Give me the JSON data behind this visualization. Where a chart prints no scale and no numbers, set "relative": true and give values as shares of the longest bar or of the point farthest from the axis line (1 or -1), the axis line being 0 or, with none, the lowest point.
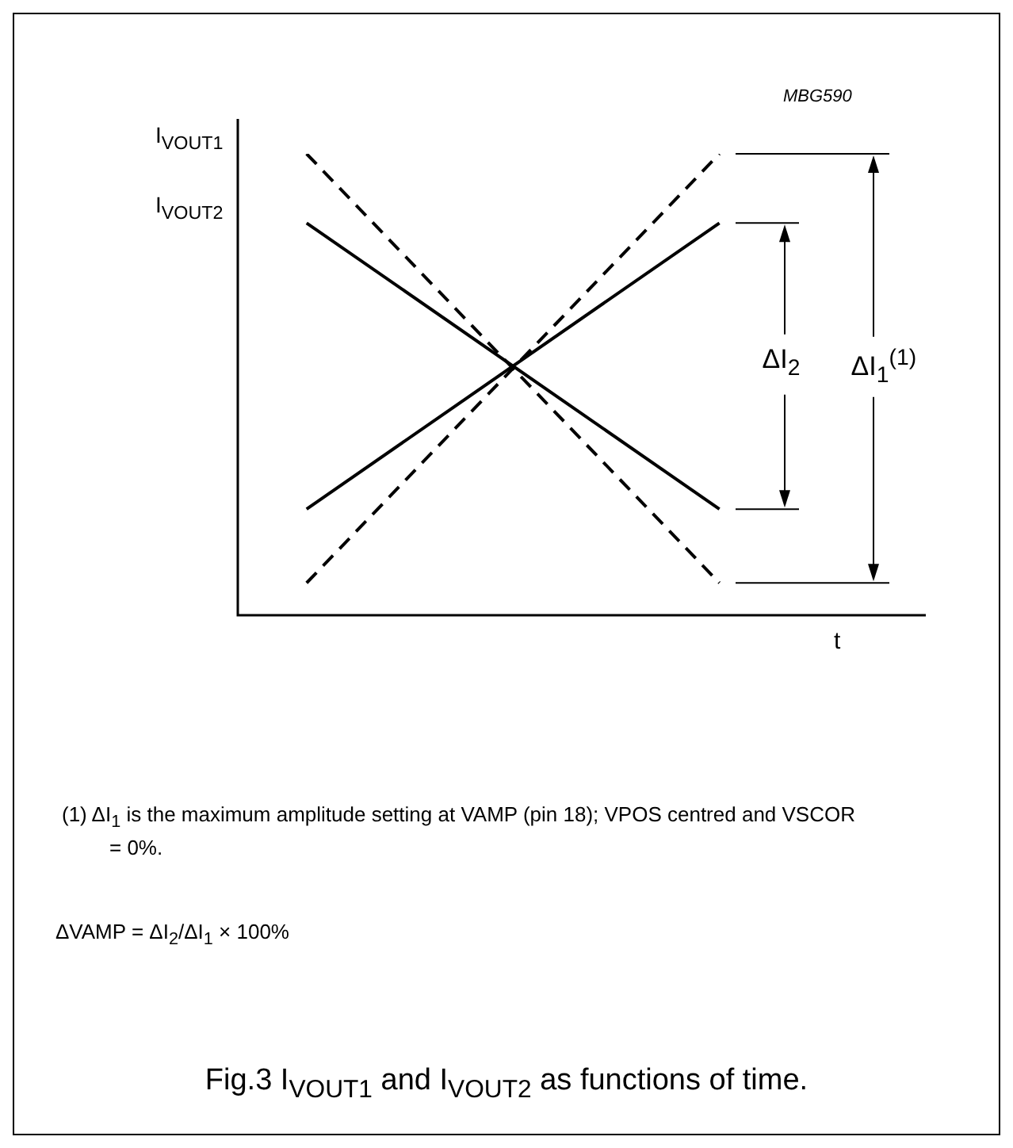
{
  "chart_data": {
    "type": "line",
    "relative": true,
    "title": "Fig.3  I$_{VOUT1}$ and I$_{VOUT2}$ as functions of time.",
    "xlabel": "t",
    "categories": [
      null,
      null,
      null,
      null,
      null,
      null,
      null,
      null,
      null,
      null,
      null
    ],
    "series": [
      {
        "color": "#000000",
        "line_style": "dashed",
        "values": [
          null,
          1,
          null,
          null,
          null,
          null,
          null,
          0.07,
          null,
          null,
          null
        ]
      },
      {
        "color": "#000000",
        "line_style": "dashed",
        "values": [
          null,
          0.07,
          null,
          null,
          null,
          null,
          null,
          1,
          null,
          null,
          null
        ]
      },
      {
        "color": "#000000",
        "line_style": "solid",
        "values": [
          null,
          0.85,
          null,
          null,
          null,
          null,
          null,
          0.23,
          null,
          null,
          null
        ]
      },
      {
        "color": "#000000",
        "line_style": "solid",
        "values": [
          null,
          0.23,
          null,
          null,
          null,
          null,
          null,
          0.85,
          null,
          null,
          null
        ]
      }
    ],
    "marker": "none",
    "legend": false,
    "annotations": [
      "I$_{VOUT1}$",
      "I$_{VOUT2}$",
      "ΔI$_{2}$",
      "ΔI$_{1}$$^{(1)}$",
      "MBG590",
      "(1)  ΔI$_{1}$ is the maximum amplitude setting at VAMP (pin 18); VPOS centred and VSCOR = 0%.",
      "ΔVAMP = ΔI$_{2}$/ΔI$_{1}$ × 100%"
    ]
  }
}
